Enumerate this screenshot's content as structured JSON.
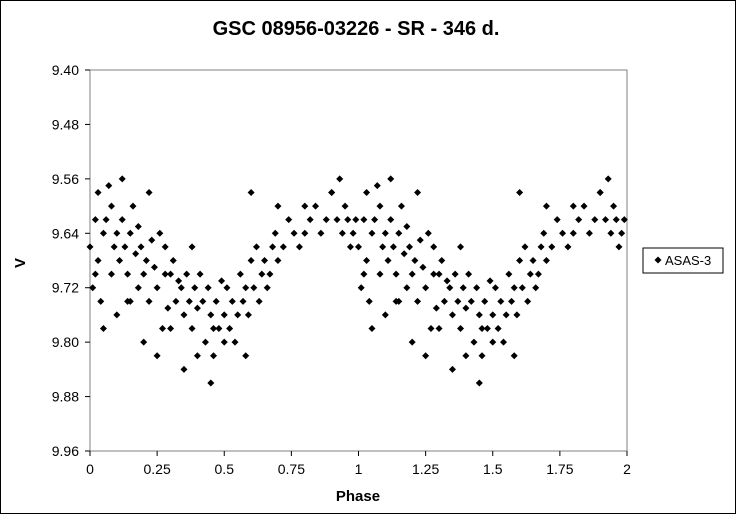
{
  "chart_data": {
    "type": "scatter",
    "title": "GSC 08956-03226  - SR - 346 d.",
    "xlabel": "Phase",
    "ylabel": "V",
    "xlim": [
      0,
      2
    ],
    "ylim": [
      9.4,
      9.96
    ],
    "y_inverted": true,
    "x_ticks": [
      "0",
      "0.25",
      "0.5",
      "0.75",
      "1",
      "1.25",
      "1.5",
      "1.75",
      "2"
    ],
    "y_ticks": [
      "9.40",
      "9.48",
      "9.56",
      "9.64",
      "9.72",
      "9.80",
      "9.88",
      "9.96"
    ],
    "grid": false,
    "legend": "right",
    "marker": "diamond",
    "series_color": "#000000",
    "series": [
      {
        "name": "ASAS-3",
        "x": [
          0.0,
          0.01,
          0.02,
          0.02,
          0.03,
          0.03,
          0.04,
          0.05,
          0.06,
          0.07,
          0.08,
          0.08,
          0.09,
          0.1,
          0.11,
          0.12,
          0.12,
          0.13,
          0.14,
          0.15,
          0.16,
          0.17,
          0.18,
          0.18,
          0.19,
          0.2,
          0.21,
          0.22,
          0.23,
          0.24,
          0.25,
          0.26,
          0.27,
          0.28,
          0.28,
          0.29,
          0.3,
          0.31,
          0.32,
          0.33,
          0.34,
          0.35,
          0.36,
          0.37,
          0.38,
          0.39,
          0.4,
          0.41,
          0.42,
          0.43,
          0.44,
          0.45,
          0.46,
          0.47,
          0.48,
          0.49,
          0.5,
          0.51,
          0.52,
          0.53,
          0.54,
          0.55,
          0.56,
          0.57,
          0.58,
          0.59,
          0.6,
          0.61,
          0.62,
          0.63,
          0.64,
          0.65,
          0.66,
          0.67,
          0.68,
          0.69,
          0.7,
          0.72,
          0.74,
          0.76,
          0.78,
          0.8,
          0.82,
          0.84,
          0.86,
          0.88,
          0.9,
          0.92,
          0.93,
          0.94,
          0.95,
          0.96,
          0.97,
          0.98,
          0.99,
          0.05,
          0.15,
          0.25,
          0.35,
          0.45,
          0.1,
          0.2,
          0.3,
          0.4,
          0.5,
          0.6,
          0.7,
          0.8,
          0.9,
          0.14,
          0.22,
          0.38,
          0.46,
          0.58
        ],
        "y": [
          9.66,
          9.72,
          9.62,
          9.7,
          9.58,
          9.68,
          9.74,
          9.64,
          9.62,
          9.57,
          9.6,
          9.7,
          9.66,
          9.64,
          9.68,
          9.56,
          9.62,
          9.66,
          9.7,
          9.64,
          9.6,
          9.67,
          9.72,
          9.63,
          9.66,
          9.7,
          9.68,
          9.74,
          9.65,
          9.69,
          9.72,
          9.64,
          9.78,
          9.7,
          9.66,
          9.75,
          9.7,
          9.68,
          9.74,
          9.71,
          9.72,
          9.76,
          9.7,
          9.74,
          9.78,
          9.72,
          9.75,
          9.7,
          9.74,
          9.8,
          9.72,
          9.76,
          9.82,
          9.74,
          9.78,
          9.71,
          9.76,
          9.72,
          9.78,
          9.74,
          9.8,
          9.76,
          9.7,
          9.74,
          9.72,
          9.76,
          9.68,
          9.72,
          9.66,
          9.74,
          9.7,
          9.68,
          9.72,
          9.7,
          9.66,
          9.64,
          9.68,
          9.66,
          9.62,
          9.64,
          9.66,
          9.64,
          9.62,
          9.6,
          9.64,
          9.62,
          9.58,
          9.62,
          9.56,
          9.64,
          9.6,
          9.62,
          9.66,
          9.64,
          9.62,
          9.78,
          9.74,
          9.82,
          9.84,
          9.86,
          9.76,
          9.8,
          9.78,
          9.82,
          9.8,
          9.58,
          9.6,
          9.6,
          9.58,
          9.74,
          9.58,
          9.66,
          9.78,
          9.82
        ]
      }
    ]
  }
}
